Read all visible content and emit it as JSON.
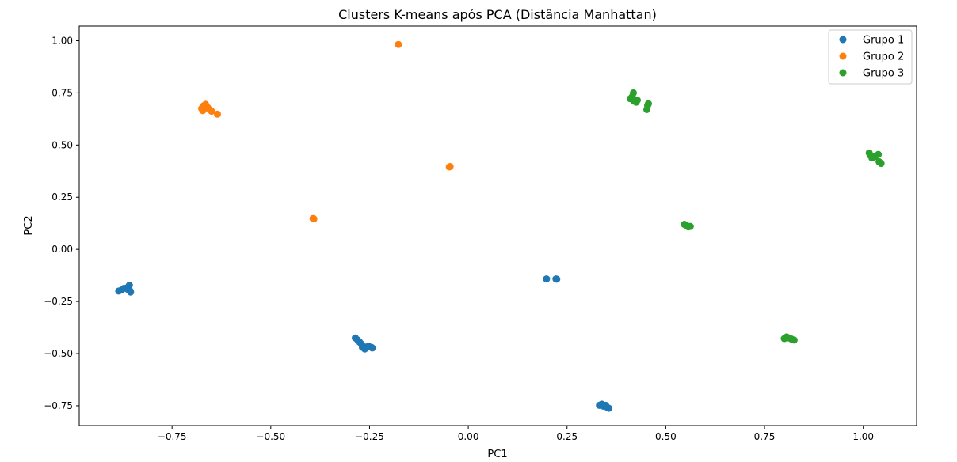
{
  "chart_data": {
    "type": "scatter",
    "title": "Clusters K-means após PCA (Distância Manhattan)",
    "xlabel": "PC1",
    "ylabel": "PC2",
    "xlim": [
      -0.985,
      1.135
    ],
    "ylim": [
      -0.845,
      1.07
    ],
    "xticks": [
      -0.75,
      -0.5,
      -0.25,
      0.0,
      0.25,
      0.5,
      0.75,
      1.0
    ],
    "xtick_labels": [
      "−0.75",
      "−0.50",
      "−0.25",
      "0.00",
      "0.25",
      "0.50",
      "0.75",
      "1.00"
    ],
    "yticks": [
      -0.75,
      -0.5,
      -0.25,
      0.0,
      0.25,
      0.5,
      0.75,
      1.0
    ],
    "ytick_labels": [
      "−0.75",
      "−0.50",
      "−0.25",
      "0.00",
      "0.25",
      "0.50",
      "0.75",
      "1.00"
    ],
    "grid": false,
    "legend_position": "top-right",
    "series": [
      {
        "name": "Grupo 1",
        "color": "#1f77b4",
        "points": [
          [
            -0.885,
            -0.2
          ],
          [
            -0.878,
            -0.195
          ],
          [
            -0.872,
            -0.187
          ],
          [
            -0.865,
            -0.185
          ],
          [
            -0.862,
            -0.192
          ],
          [
            -0.858,
            -0.172
          ],
          [
            -0.856,
            -0.2
          ],
          [
            -0.855,
            -0.205
          ],
          [
            -0.286,
            -0.425
          ],
          [
            -0.28,
            -0.435
          ],
          [
            -0.275,
            -0.445
          ],
          [
            -0.27,
            -0.455
          ],
          [
            -0.268,
            -0.47
          ],
          [
            -0.262,
            -0.478
          ],
          [
            -0.258,
            -0.468
          ],
          [
            -0.252,
            -0.465
          ],
          [
            -0.245,
            -0.47
          ],
          [
            -0.243,
            -0.473
          ],
          [
            0.198,
            -0.142
          ],
          [
            0.222,
            -0.142
          ],
          [
            0.224,
            -0.143
          ],
          [
            0.332,
            -0.748
          ],
          [
            0.338,
            -0.742
          ],
          [
            0.342,
            -0.752
          ],
          [
            0.348,
            -0.748
          ],
          [
            0.352,
            -0.758
          ],
          [
            0.356,
            -0.762
          ]
        ]
      },
      {
        "name": "Grupo 2",
        "color": "#ff7f0e",
        "points": [
          [
            -0.675,
            0.675
          ],
          [
            -0.672,
            0.665
          ],
          [
            -0.67,
            0.688
          ],
          [
            -0.665,
            0.695
          ],
          [
            -0.66,
            0.68
          ],
          [
            -0.655,
            0.67
          ],
          [
            -0.65,
            0.662
          ],
          [
            -0.635,
            0.648
          ],
          [
            -0.177,
            0.982
          ],
          [
            -0.048,
            0.395
          ],
          [
            -0.046,
            0.397
          ],
          [
            -0.393,
            0.148
          ],
          [
            -0.391,
            0.146
          ]
        ]
      },
      {
        "name": "Grupo 3",
        "color": "#2ca02c",
        "points": [
          [
            0.41,
            0.722
          ],
          [
            0.415,
            0.732
          ],
          [
            0.418,
            0.75
          ],
          [
            0.42,
            0.71
          ],
          [
            0.425,
            0.705
          ],
          [
            0.428,
            0.715
          ],
          [
            0.452,
            0.67
          ],
          [
            0.454,
            0.69
          ],
          [
            0.456,
            0.698
          ],
          [
            1.015,
            0.462
          ],
          [
            1.018,
            0.45
          ],
          [
            1.022,
            0.438
          ],
          [
            1.03,
            0.445
          ],
          [
            1.038,
            0.455
          ],
          [
            1.04,
            0.42
          ],
          [
            1.045,
            0.412
          ],
          [
            0.547,
            0.12
          ],
          [
            0.552,
            0.115
          ],
          [
            0.557,
            0.108
          ],
          [
            0.562,
            0.11
          ],
          [
            0.8,
            -0.428
          ],
          [
            0.806,
            -0.42
          ],
          [
            0.812,
            -0.425
          ],
          [
            0.818,
            -0.43
          ],
          [
            0.825,
            -0.435
          ]
        ]
      }
    ]
  }
}
